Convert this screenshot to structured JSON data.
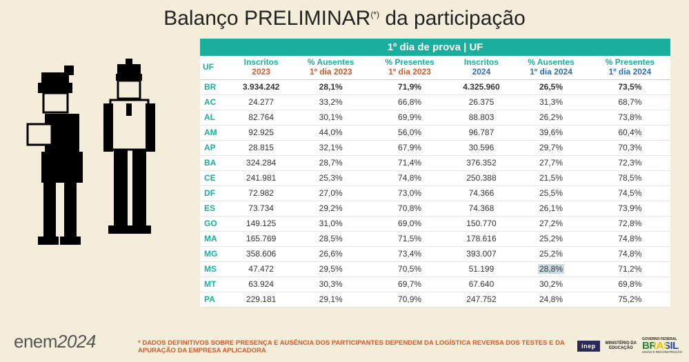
{
  "title_main": "Balanço PRELIMINAR",
  "title_sup": "(*)",
  "title_rest": " da participação",
  "table": {
    "banner": "1º dia de prova | UF",
    "columns": [
      {
        "top": "UF",
        "sub": "",
        "subClass": ""
      },
      {
        "top": "Inscritos",
        "sub": "2023",
        "subClass": "sub"
      },
      {
        "top": "% Ausentes",
        "sub": "1º dia 2023",
        "subClass": "sub"
      },
      {
        "top": "% Presentes",
        "sub": "1º dia 2023",
        "subClass": "sub"
      },
      {
        "top": "Inscritos",
        "sub": "2024",
        "subClass": "sub2024"
      },
      {
        "top": "% Ausentes",
        "sub": "1º dia 2024",
        "subClass": "sub2024"
      },
      {
        "top": "% Presentes",
        "sub": "1º dia 2024",
        "subClass": "sub2024"
      }
    ],
    "rows": [
      {
        "bold": true,
        "cells": [
          "BR",
          "3.934.242",
          "28,1%",
          "71,9%",
          "4.325.960",
          "26,5%",
          "73,5%"
        ],
        "hl": -1
      },
      {
        "bold": false,
        "cells": [
          "AC",
          "24.277",
          "33,2%",
          "66,8%",
          "26.375",
          "31,3%",
          "68,7%"
        ],
        "hl": -1
      },
      {
        "bold": false,
        "cells": [
          "AL",
          "82.764",
          "30,1%",
          "69,9%",
          "88.803",
          "26,2%",
          "73,8%"
        ],
        "hl": -1
      },
      {
        "bold": false,
        "cells": [
          "AM",
          "92.925",
          "44,0%",
          "56,0%",
          "96.787",
          "39,6%",
          "60,4%"
        ],
        "hl": -1
      },
      {
        "bold": false,
        "cells": [
          "AP",
          "28.815",
          "32,1%",
          "67,9%",
          "30.596",
          "29,7%",
          "70,3%"
        ],
        "hl": -1
      },
      {
        "bold": false,
        "cells": [
          "BA",
          "324.284",
          "28,7%",
          "71,4%",
          "376.352",
          "27,7%",
          "72,3%"
        ],
        "hl": -1
      },
      {
        "bold": false,
        "cells": [
          "CE",
          "241.981",
          "25,3%",
          "74,8%",
          "250.388",
          "21,5%",
          "78,5%"
        ],
        "hl": -1
      },
      {
        "bold": false,
        "cells": [
          "DF",
          "72.982",
          "27,0%",
          "73,0%",
          "74.366",
          "25,5%",
          "74,5%"
        ],
        "hl": -1
      },
      {
        "bold": false,
        "cells": [
          "ES",
          "73.734",
          "29,2%",
          "70,8%",
          "74.368",
          "26,1%",
          "73,9%"
        ],
        "hl": -1
      },
      {
        "bold": false,
        "cells": [
          "GO",
          "149.125",
          "31,0%",
          "69,0%",
          "150.770",
          "27,2%",
          "72,8%"
        ],
        "hl": -1
      },
      {
        "bold": false,
        "cells": [
          "MA",
          "165.769",
          "28,5%",
          "71,5%",
          "178.616",
          "25,2%",
          "74,8%"
        ],
        "hl": -1
      },
      {
        "bold": false,
        "cells": [
          "MG",
          "358.606",
          "26,6%",
          "73,4%",
          "393.007",
          "25,2%",
          "74,8%"
        ],
        "hl": -1
      },
      {
        "bold": false,
        "cells": [
          "MS",
          "47.472",
          "29,5%",
          "70,5%",
          "51.199",
          "28,8%",
          "71,2%"
        ],
        "hl": 5
      },
      {
        "bold": false,
        "cells": [
          "MT",
          "63.924",
          "30,3%",
          "69,7%",
          "67.640",
          "30,2%",
          "69,8%"
        ],
        "hl": -1
      },
      {
        "bold": false,
        "cells": [
          "PA",
          "229.181",
          "29,1%",
          "70,9%",
          "247.752",
          "24,8%",
          "75,2%"
        ],
        "hl": -1
      }
    ]
  },
  "footnote": "* DADOS DEFINITIVOS SOBRE PRESENÇA E AUSÊNCIA DOS PARTICIPANTES DEPENDEM DA LOGÍSTICA REVERSA DOS TESTES E DA APURAÇÃO DA EMPRESA APLICADORA",
  "logo_enem_text": "enem",
  "logo_enem_year": "2024",
  "logo_inep": "inep",
  "logo_min_l1": "MINISTÉRIO DA",
  "logo_min_l2": "EDUCAÇÃO",
  "logo_brasil_top": "GOVERNO FEDERAL",
  "logo_brasil": "BRASIL",
  "logo_brasil_bot": "UNIÃO E RECONSTRUÇÃO",
  "colors": {
    "bg": "#f3edd9",
    "teal": "#1aaf9c",
    "orange": "#d05a2a",
    "blue": "#2b6fb3"
  }
}
